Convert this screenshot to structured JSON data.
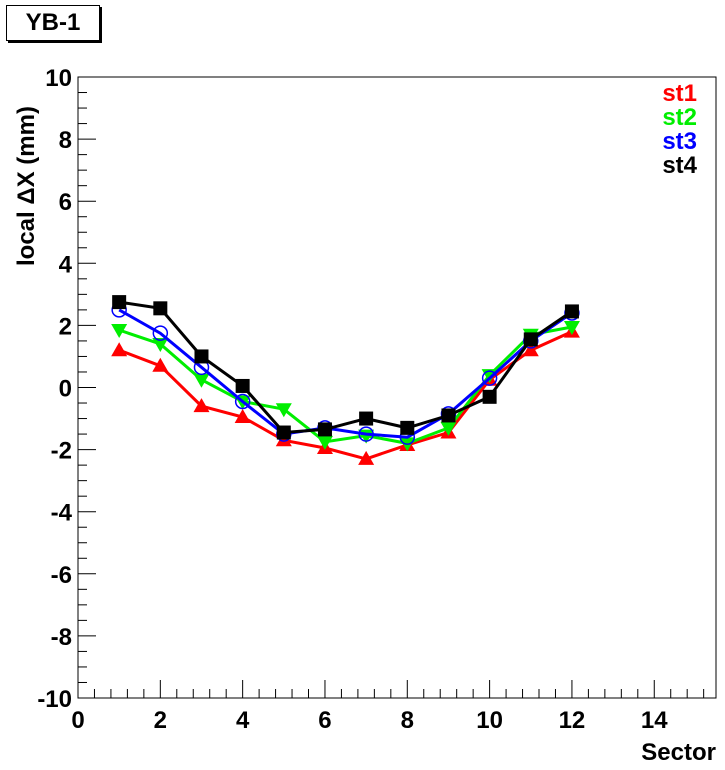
{
  "chart_data": {
    "type": "line",
    "title": "YB-1",
    "xlabel": "Sector",
    "ylabel": "local ΔX (mm)",
    "xlim": [
      0,
      15.5
    ],
    "ylim": [
      -10,
      10
    ],
    "xticks": [
      0,
      2,
      4,
      6,
      8,
      10,
      12,
      14
    ],
    "yticks": [
      -10,
      -8,
      -6,
      -4,
      -2,
      0,
      2,
      4,
      6,
      8,
      10
    ],
    "grid": false,
    "legend_position": "top-right",
    "x": [
      1,
      2,
      3,
      4,
      5,
      6,
      7,
      8,
      9,
      10,
      11,
      12
    ],
    "series": [
      {
        "name": "st1",
        "color": "#ff0000",
        "marker": "triangle-up",
        "values": [
          1.2,
          0.7,
          -0.6,
          -0.95,
          -1.7,
          -1.95,
          -2.3,
          -1.85,
          -1.45,
          0.25,
          1.2,
          1.8
        ]
      },
      {
        "name": "st2",
        "color": "#00ee00",
        "marker": "triangle-down",
        "values": [
          1.85,
          1.4,
          0.25,
          -0.45,
          -0.7,
          -1.75,
          -1.55,
          -1.8,
          -1.3,
          0.4,
          1.7,
          1.95
        ]
      },
      {
        "name": "st3",
        "color": "#0000ff",
        "marker": "open-circle",
        "values": [
          2.5,
          1.75,
          0.65,
          -0.45,
          -1.5,
          -1.3,
          -1.5,
          -1.6,
          -0.85,
          0.3,
          1.5,
          2.4
        ]
      },
      {
        "name": "st4",
        "color": "#000000",
        "marker": "square",
        "values": [
          2.75,
          2.55,
          1.0,
          0.05,
          -1.45,
          -1.35,
          -1.0,
          -1.3,
          -0.9,
          -0.3,
          1.55,
          2.45
        ]
      }
    ]
  }
}
